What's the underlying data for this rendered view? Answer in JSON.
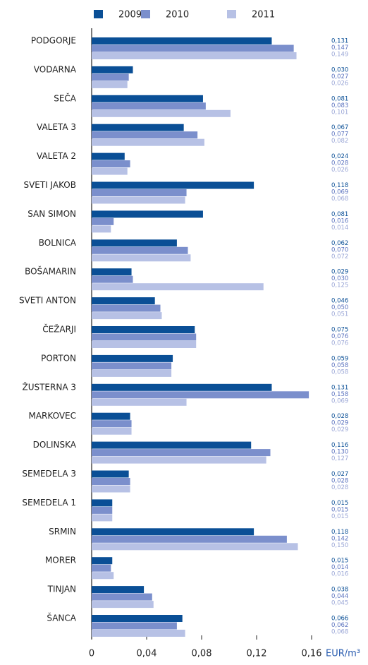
{
  "chart_data": {
    "type": "bar",
    "orientation": "horizontal",
    "categories": [
      "PODGORJE",
      "VODARNA",
      "SEČA",
      "VALETA 3",
      "VALETA 2",
      "SVETI JAKOB",
      "SAN SIMON",
      "BOLNICA",
      "BOŠAMARIN",
      "SVETI ANTON",
      "ČEŽARJI",
      "PORTON",
      "ŽUSTERNA 3",
      "MARKOVEC",
      "DOLINSKA",
      "SEMEDELA 3",
      "SEMEDELA 1",
      "SRMIN",
      "MORER",
      "TINJAN",
      "ŠANCA"
    ],
    "series": [
      {
        "name": "2009",
        "color": "#0a4f96",
        "values": [
          0.131,
          0.03,
          0.081,
          0.067,
          0.024,
          0.118,
          0.081,
          0.062,
          0.029,
          0.046,
          0.075,
          0.059,
          0.131,
          0.028,
          0.116,
          0.027,
          0.015,
          0.118,
          0.015,
          0.038,
          0.066
        ],
        "value_labels": [
          "0,131",
          "0,030",
          "0,081",
          "0,067",
          "0,024",
          "0,118",
          "0,081",
          "0,062",
          "0,029",
          "0,046",
          "0,075",
          "0,059",
          "0,131",
          "0,028",
          "0,116",
          "0,027",
          "0,015",
          "0,118",
          "0,015",
          "0,038",
          "0,066"
        ]
      },
      {
        "name": "2010",
        "color": "#7b8fcc",
        "values": [
          0.147,
          0.027,
          0.083,
          0.077,
          0.028,
          0.069,
          0.016,
          0.07,
          0.03,
          0.05,
          0.076,
          0.058,
          0.158,
          0.029,
          0.13,
          0.028,
          0.015,
          0.142,
          0.014,
          0.044,
          0.062
        ],
        "value_labels": [
          "0,147",
          "0,027",
          "0,083",
          "0,077",
          "0,028",
          "0,069",
          "0,016",
          "0,070",
          "0,030",
          "0,050",
          "0,076",
          "0,058",
          "0,158",
          "0,029",
          "0,130",
          "0,028",
          "0,015",
          "0,142",
          "0,014",
          "0,044",
          "0,062"
        ]
      },
      {
        "name": "2011",
        "color": "#b7c1e5",
        "values": [
          0.149,
          0.026,
          0.101,
          0.082,
          0.026,
          0.068,
          0.014,
          0.072,
          0.125,
          0.051,
          0.076,
          0.058,
          0.069,
          0.029,
          0.127,
          0.028,
          0.015,
          0.15,
          0.016,
          0.045,
          0.068
        ],
        "value_labels": [
          "0,149",
          "0,026",
          "0,101",
          "0,082",
          "0,026",
          "0,068",
          "0,014",
          "0,072",
          "0,125",
          "0,051",
          "0,076",
          "0,058",
          "0,069",
          "0,029",
          "0,127",
          "0,028",
          "0,015",
          "0,150",
          "0,016",
          "0,045",
          "0,068"
        ]
      }
    ],
    "x_label": "EUR/m³",
    "xlim": [
      0,
      0.16
    ],
    "xticks": [
      0,
      {
        "value": 0.04,
        "label": "0,04"
      },
      {
        "value": 0.08,
        "label": "0,08"
      },
      {
        "value": 0.12,
        "label": "0,12"
      },
      {
        "value": 0.16,
        "label": "0,16"
      }
    ],
    "legend": "top"
  }
}
